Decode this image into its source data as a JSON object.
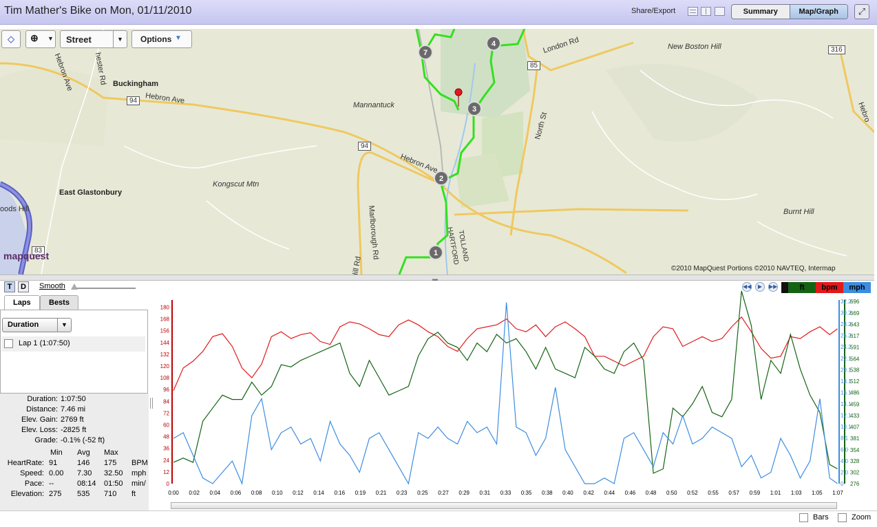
{
  "window": {
    "title": "Tim Mather's Bike on Mon, 01/11/2010",
    "share_label": "Share/Export",
    "views": [
      "Summary",
      "Map/Graph"
    ],
    "selected_view": "Map/Graph"
  },
  "map": {
    "map_type": "Street",
    "options_label": "Options",
    "provider_logo": "mapquest",
    "copyright": "©2010 MapQuest  Portions ©2010 NAVTEQ, Intermap",
    "labels": {
      "buckingham": "Buckingham",
      "east_glastonbury": "East Glastonbury",
      "mannantuck": "Mannantuck",
      "kongscut": "Kongscut Mtn",
      "new_boston_hill": "New Boston Hill",
      "burnt_hill": "Burnt Hill",
      "hebron_ave_1": "Hebron Ave",
      "hebron_ave_2": "Hebron Ave",
      "hebron_ave_3": "Hebron Ave",
      "london_rd": "London Rd",
      "north_st": "North St",
      "marlborough_rd": "Marlborough Rd",
      "manchester_rd": "hester Rd",
      "hill_rd": "y Hill Rd",
      "hartford": "HARTFORD",
      "tolland": "TOLLAND",
      "woods_hill": "oods Hill",
      "hebron_right": "Hebro",
      "route_94_a": "94",
      "route_94_b": "94",
      "route_85": "85",
      "route_316": "316",
      "route_83": "83"
    },
    "lap_markers": [
      "1",
      "2",
      "3",
      "4",
      "7"
    ]
  },
  "graph_controls": {
    "t_label": "T",
    "d_label": "D",
    "smooth_label": "Smooth",
    "tabs": [
      "Laps",
      "Bests"
    ],
    "selected_tab": "Laps",
    "sort_select": "Duration",
    "laps": [
      {
        "label": "Lap 1 (1:07:50)",
        "checked": false
      }
    ],
    "legend": {
      "ft": "ft",
      "bpm": "bpm",
      "mph": "mph"
    },
    "bars_label": "Bars",
    "zoom_label": "Zoom"
  },
  "summary": {
    "duration_label": "Duration:",
    "duration": "1:07:50",
    "distance_label": "Distance:",
    "distance": "7.46 mi",
    "gain_label": "Elev. Gain:",
    "gain": "2769 ft",
    "loss_label": "Elev. Loss:",
    "loss": "-2825 ft",
    "grade_label": "Grade:",
    "grade": "-0.1% (-52 ft)",
    "table_headers": [
      "Min",
      "Avg",
      "Max"
    ],
    "rows": [
      {
        "label": "HeartRate:",
        "min": "91",
        "avg": "146",
        "max": "175",
        "unit": "BPM"
      },
      {
        "label": "Speed:",
        "min": "0.00",
        "avg": "7.30",
        "max": "32.50",
        "unit": "mph"
      },
      {
        "label": "Pace:",
        "min": "--",
        "avg": "08:14",
        "max": "01:50",
        "unit": "min/"
      },
      {
        "label": "Elevation:",
        "min": "275",
        "avg": "535",
        "max": "710",
        "unit": "ft"
      }
    ]
  },
  "chart_data": {
    "type": "line",
    "colors": {
      "heart_rate": "#e01a1a",
      "elevation": "#136313",
      "speed": "#3c8de0"
    },
    "left_axis": {
      "ticks": [
        "0",
        "12",
        "24",
        "36",
        "48",
        "60",
        "72",
        "84",
        "96",
        "108",
        "120",
        "132",
        "144",
        "156",
        "168",
        "180"
      ],
      "range": [
        0,
        186
      ]
    },
    "right_axis_speed": {
      "ticks": [
        "0",
        "2.0",
        "4.0",
        "6.0",
        "8.1",
        "10.1",
        "12.1",
        "14.1",
        "16.1",
        "18.1",
        "20.1",
        "22.1",
        "24.2",
        "26.2",
        "28.2",
        "30.2",
        "32.2"
      ],
      "range": [
        0,
        32.2
      ]
    },
    "right_axis_elev": {
      "ticks": [
        "276",
        "302",
        "328",
        "354",
        "381",
        "407",
        "433",
        "459",
        "486",
        "512",
        "538",
        "564",
        "591",
        "617",
        "643",
        "669",
        "696"
      ],
      "range": [
        276,
        696
      ]
    },
    "x_ticks": [
      "0:00",
      "0:02",
      "0:04",
      "0:06",
      "0:08",
      "0:10",
      "0:12",
      "0:14",
      "0:16",
      "0:19",
      "0:21",
      "0:23",
      "0:25",
      "0:27",
      "0:29",
      "0:31",
      "0:33",
      "0:35",
      "0:38",
      "0:40",
      "0:42",
      "0:44",
      "0:46",
      "0:48",
      "0:50",
      "0:52",
      "0:55",
      "0:57",
      "0:59",
      "1:01",
      "1:03",
      "1:05",
      "1:07"
    ],
    "x_range_minutes": [
      0,
      67.83
    ],
    "series": [
      {
        "name": "bpm",
        "key": "heart_rate",
        "axis": "left",
        "x": [
          0,
          1,
          2,
          3,
          4,
          5,
          6,
          7,
          8,
          9,
          10,
          11,
          12,
          13,
          14,
          15,
          16,
          17,
          18,
          19,
          20,
          21,
          22,
          23,
          24,
          25,
          26,
          27,
          28,
          29,
          30,
          31,
          32,
          33,
          34,
          35,
          36,
          37,
          38,
          39,
          40,
          41,
          42,
          43,
          44,
          45,
          46,
          47,
          48,
          49,
          50,
          51,
          52,
          53,
          54,
          55,
          56,
          57,
          58,
          59,
          60,
          61,
          62,
          63,
          64,
          65,
          66,
          67,
          67.8
        ],
        "y": [
          95,
          118,
          125,
          135,
          150,
          153,
          140,
          118,
          108,
          122,
          150,
          155,
          148,
          152,
          154,
          145,
          142,
          160,
          165,
          163,
          158,
          152,
          150,
          162,
          167,
          162,
          155,
          150,
          140,
          135,
          148,
          158,
          160,
          162,
          168,
          158,
          155,
          162,
          150,
          160,
          165,
          158,
          150,
          130,
          130,
          125,
          120,
          125,
          130,
          150,
          160,
          158,
          140,
          145,
          150,
          145,
          148,
          160,
          170,
          155,
          138,
          128,
          130,
          150,
          148,
          155,
          160,
          152,
          158
        ]
      },
      {
        "name": "ft",
        "key": "elevation",
        "axis": "right_elev",
        "x": [
          0,
          1,
          2,
          3,
          4,
          5,
          6,
          7,
          8,
          9,
          10,
          11,
          12,
          13,
          14,
          15,
          16,
          17,
          18,
          19,
          20,
          21,
          22,
          23,
          24,
          25,
          26,
          27,
          28,
          29,
          30,
          31,
          32,
          33,
          34,
          35,
          36,
          37,
          38,
          39,
          40,
          41,
          42,
          43,
          44,
          45,
          46,
          47,
          48,
          49,
          50,
          51,
          52,
          53,
          54,
          55,
          56,
          57,
          58,
          59,
          60,
          61,
          62,
          63,
          64,
          65,
          66,
          67,
          67.8
        ],
        "y": [
          325,
          335,
          325,
          420,
          450,
          480,
          470,
          470,
          510,
          480,
          500,
          550,
          545,
          560,
          570,
          580,
          590,
          600,
          530,
          500,
          560,
          520,
          480,
          490,
          500,
          570,
          610,
          625,
          600,
          590,
          560,
          600,
          580,
          620,
          600,
          610,
          580,
          540,
          590,
          540,
          530,
          520,
          590,
          570,
          540,
          530,
          580,
          600,
          560,
          300,
          310,
          450,
          430,
          460,
          500,
          440,
          430,
          470,
          720,
          640,
          470,
          560,
          530,
          620,
          540,
          480,
          440,
          320,
          310
        ]
      },
      {
        "name": "mph",
        "key": "speed",
        "axis": "right_speed",
        "x": [
          0,
          1,
          2,
          3,
          4,
          5,
          6,
          7,
          8,
          9,
          10,
          11,
          12,
          13,
          14,
          15,
          16,
          17,
          18,
          19,
          20,
          21,
          22,
          23,
          24,
          25,
          26,
          27,
          28,
          29,
          30,
          31,
          32,
          33,
          34,
          35,
          36,
          37,
          38,
          39,
          40,
          41,
          42,
          43,
          44,
          45,
          46,
          47,
          48,
          49,
          50,
          51,
          52,
          53,
          54,
          55,
          56,
          57,
          58,
          59,
          60,
          61,
          62,
          63,
          64,
          65,
          66,
          67,
          67.8
        ],
        "y": [
          8,
          9,
          5,
          1,
          0,
          2,
          4,
          0,
          12,
          15,
          6,
          9,
          10,
          7,
          8,
          4,
          11,
          7,
          5,
          2,
          8,
          9,
          6,
          3,
          0,
          9,
          8,
          10,
          8,
          7,
          11,
          9,
          10,
          7,
          32,
          10,
          9,
          5,
          8,
          17,
          6,
          3,
          0,
          0,
          1,
          0,
          8,
          9,
          6,
          3,
          9,
          7,
          12,
          7,
          8,
          10,
          9,
          8,
          3,
          5,
          1,
          2,
          8,
          5,
          1,
          4,
          15,
          1,
          0
        ]
      }
    ]
  }
}
